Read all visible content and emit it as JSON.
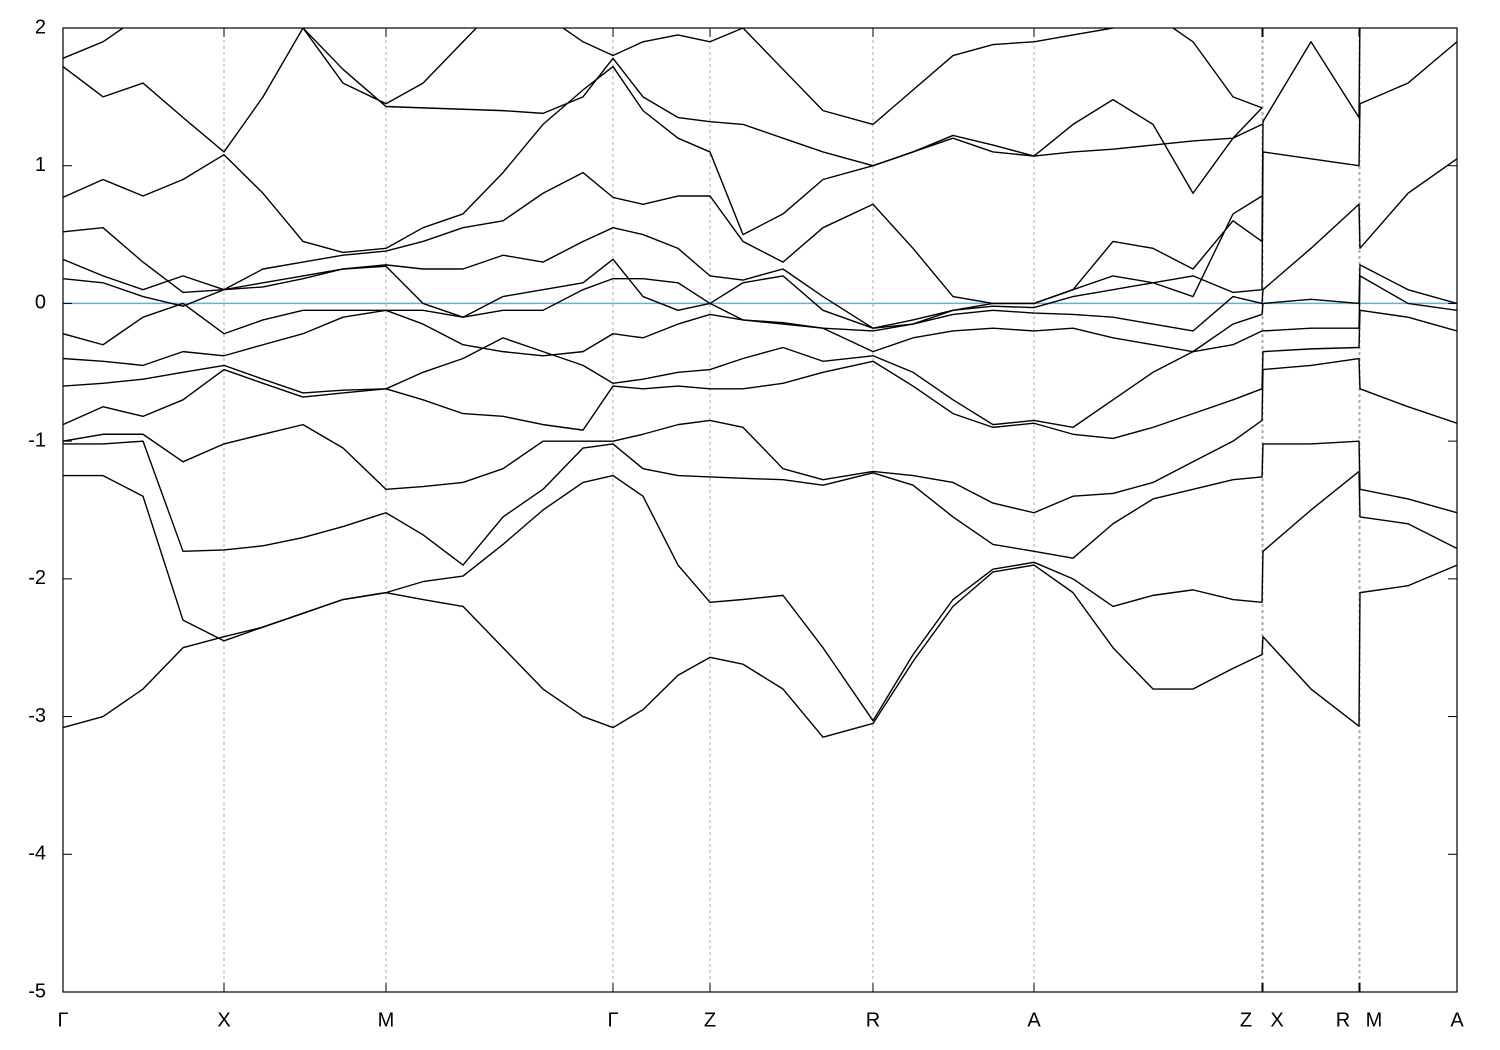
{
  "chart_data": {
    "type": "line",
    "color": "#000000",
    "grid": true,
    "grid_style": "dotted",
    "xlim": [
      0,
      139.4
    ],
    "ylim": [
      -5,
      2
    ],
    "yticks": [
      -5,
      -4,
      -3,
      -2,
      -1,
      0,
      1,
      2
    ],
    "xticks": [
      {
        "value": 0,
        "label": "Γ"
      },
      {
        "value": 16.1,
        "label": "X"
      },
      {
        "value": 32.3,
        "label": "M"
      },
      {
        "value": 55,
        "label": "Γ"
      },
      {
        "value": 64.7,
        "label": "Z"
      },
      {
        "value": 81,
        "label": "R"
      },
      {
        "value": 97.1,
        "label": "A"
      },
      {
        "value": 119.9,
        "label": "Z"
      },
      {
        "value": 120,
        "label": "X"
      },
      {
        "value": 129.6,
        "label": "R"
      },
      {
        "value": 129.7,
        "label": "M"
      },
      {
        "value": 139.4,
        "label": "A"
      }
    ],
    "hlines": [
      {
        "value": 0,
        "color": "#6aaed0"
      }
    ],
    "x": [
      0,
      4,
      8,
      12,
      16.1,
      20,
      24,
      28,
      32.3,
      36,
      40,
      44,
      48,
      52,
      55,
      58,
      61.5,
      64.7,
      68,
      72,
      76,
      81,
      85,
      89,
      93,
      97.1,
      101,
      105,
      109,
      113,
      117,
      119.9,
      120,
      124.8,
      129.6,
      129.7,
      134.5,
      139.4
    ],
    "series": [
      {
        "values": [
          -3.08,
          -3.0,
          -2.8,
          -2.5,
          -2.42,
          -2.35,
          -2.25,
          -2.15,
          -2.1,
          -2.15,
          -2.2,
          -2.5,
          -2.8,
          -3.0,
          -3.08,
          -2.95,
          -2.7,
          -2.57,
          -2.62,
          -2.8,
          -3.15,
          -3.05,
          -2.6,
          -2.2,
          -1.95,
          -1.9,
          -2.1,
          -2.5,
          -2.8,
          -2.8,
          -2.65,
          -2.55,
          -2.42,
          -2.8,
          -3.07,
          -2.1,
          -2.05,
          -1.9
        ]
      },
      {
        "values": [
          -1.25,
          -1.25,
          -1.4,
          -2.3,
          -2.45,
          -2.35,
          -2.25,
          -2.15,
          -2.1,
          -2.02,
          -1.98,
          -1.75,
          -1.5,
          -1.3,
          -1.25,
          -1.4,
          -1.9,
          -2.17,
          -2.15,
          -2.12,
          -2.5,
          -3.03,
          -2.55,
          -2.15,
          -1.93,
          -1.88,
          -2.0,
          -2.2,
          -2.12,
          -2.08,
          -2.15,
          -2.17,
          -1.8,
          -1.5,
          -1.22,
          -1.55,
          -1.6,
          -1.78
        ]
      },
      {
        "values": [
          -1.02,
          -1.02,
          -1.0,
          -1.8,
          -1.79,
          -1.76,
          -1.7,
          -1.62,
          -1.52,
          -1.68,
          -1.9,
          -1.55,
          -1.35,
          -1.05,
          -1.02,
          -1.2,
          -1.25,
          -1.26,
          -1.27,
          -1.28,
          -1.32,
          -1.23,
          -1.32,
          -1.55,
          -1.75,
          -1.8,
          -1.85,
          -1.6,
          -1.42,
          -1.35,
          -1.28,
          -1.26,
          -1.02,
          -1.02,
          -1.0,
          -1.35,
          -1.42,
          -1.52
        ]
      },
      {
        "values": [
          -1.0,
          -0.95,
          -0.95,
          -1.15,
          -1.02,
          -0.95,
          -0.88,
          -1.05,
          -1.35,
          -1.33,
          -1.3,
          -1.2,
          -1.0,
          -1.0,
          -1.0,
          -0.95,
          -0.88,
          -0.85,
          -0.9,
          -1.2,
          -1.28,
          -1.22,
          -1.25,
          -1.3,
          -1.45,
          -1.52,
          -1.4,
          -1.38,
          -1.3,
          -1.15,
          -1.0,
          -0.85,
          -0.48,
          -0.45,
          -0.4,
          -0.62,
          -0.75,
          -0.87
        ]
      },
      {
        "values": [
          -0.88,
          -0.75,
          -0.82,
          -0.7,
          -0.48,
          -0.58,
          -0.68,
          -0.65,
          -0.62,
          -0.7,
          -0.8,
          -0.82,
          -0.88,
          -0.92,
          -0.6,
          -0.62,
          -0.6,
          -0.62,
          -0.62,
          -0.58,
          -0.5,
          -0.42,
          -0.6,
          -0.8,
          -0.9,
          -0.87,
          -0.95,
          -0.98,
          -0.9,
          -0.8,
          -0.7,
          -0.62,
          -0.35,
          -0.33,
          -0.32,
          -0.05,
          -0.1,
          -0.2
        ]
      },
      {
        "values": [
          -0.6,
          -0.58,
          -0.55,
          -0.5,
          -0.45,
          -0.55,
          -0.65,
          -0.63,
          -0.62,
          -0.5,
          -0.4,
          -0.25,
          -0.35,
          -0.45,
          -0.58,
          -0.55,
          -0.5,
          -0.48,
          -0.4,
          -0.32,
          -0.42,
          -0.38,
          -0.5,
          -0.7,
          -0.88,
          -0.85,
          -0.9,
          -0.7,
          -0.5,
          -0.35,
          -0.3,
          -0.2,
          -0.2,
          -0.18,
          -0.18,
          0.2,
          0.0,
          -0.05
        ]
      },
      {
        "values": [
          -0.4,
          -0.42,
          -0.45,
          -0.35,
          -0.38,
          -0.3,
          -0.22,
          -0.1,
          -0.05,
          -0.15,
          -0.3,
          -0.35,
          -0.38,
          -0.35,
          -0.22,
          -0.25,
          -0.15,
          -0.08,
          -0.12,
          -0.14,
          -0.18,
          -0.35,
          -0.25,
          -0.2,
          -0.18,
          -0.2,
          -0.18,
          -0.25,
          -0.3,
          -0.35,
          -0.15,
          -0.08,
          0.0,
          0.03,
          0.0,
          0.28,
          0.1,
          0.0
        ]
      },
      {
        "values": [
          -0.22,
          -0.3,
          -0.1,
          0.0,
          -0.22,
          -0.12,
          -0.05,
          -0.05,
          -0.05,
          -0.05,
          -0.1,
          -0.05,
          -0.05,
          0.1,
          0.18,
          0.18,
          0.15,
          0.0,
          -0.12,
          -0.15,
          -0.18,
          -0.2,
          -0.15,
          -0.08,
          -0.05,
          -0.07,
          -0.08,
          -0.1,
          -0.15,
          -0.2,
          0.05,
          0.0,
          0.1,
          0.4,
          0.72,
          0.4,
          0.8,
          1.05
        ]
      },
      {
        "values": [
          0.18,
          0.15,
          0.05,
          -0.02,
          0.1,
          0.15,
          0.2,
          0.25,
          0.27,
          0.0,
          -0.1,
          0.05,
          0.1,
          0.15,
          0.32,
          0.05,
          -0.05,
          0.0,
          0.15,
          0.2,
          -0.05,
          -0.18,
          -0.12,
          -0.05,
          -0.02,
          -0.03,
          0.05,
          0.1,
          0.15,
          0.2,
          0.08,
          0.1,
          1.1,
          1.05,
          1.0,
          1.45,
          1.6,
          1.9
        ]
      },
      {
        "values": [
          0.32,
          0.2,
          0.1,
          0.2,
          0.1,
          0.12,
          0.18,
          0.25,
          0.28,
          0.25,
          0.25,
          0.35,
          0.3,
          0.45,
          0.55,
          0.5,
          0.4,
          0.2,
          0.17,
          0.25,
          0.05,
          -0.18,
          -0.15,
          -0.05,
          0.0,
          0.0,
          0.1,
          0.45,
          0.4,
          0.25,
          0.6,
          0.45,
          1.32,
          1.9,
          1.35,
          2.1,
          2.1,
          2.1
        ]
      },
      {
        "values": [
          0.52,
          0.55,
          0.3,
          0.08,
          0.1,
          0.25,
          0.3,
          0.35,
          0.38,
          0.45,
          0.55,
          0.6,
          0.8,
          0.95,
          0.77,
          0.72,
          0.78,
          0.78,
          0.45,
          0.3,
          0.55,
          0.72,
          0.4,
          0.05,
          0.0,
          0.0,
          0.1,
          0.2,
          0.15,
          0.05,
          0.65,
          0.78,
          null,
          null,
          null,
          null,
          null,
          null
        ]
      },
      {
        "values": [
          0.77,
          0.9,
          0.78,
          0.9,
          1.08,
          0.8,
          0.45,
          0.37,
          0.4,
          0.55,
          0.65,
          0.95,
          1.3,
          1.55,
          1.72,
          1.4,
          1.2,
          1.1,
          0.5,
          0.65,
          0.9,
          1.0,
          1.1,
          1.2,
          1.1,
          1.07,
          1.1,
          1.12,
          1.15,
          1.18,
          1.2,
          1.3,
          null,
          null,
          null,
          null,
          null,
          null
        ]
      },
      {
        "values": [
          1.72,
          1.5,
          1.6,
          1.35,
          1.1,
          1.5,
          2.0,
          1.7,
          1.43,
          1.42,
          1.41,
          1.4,
          1.38,
          1.5,
          1.78,
          1.5,
          1.35,
          1.32,
          1.3,
          1.2,
          1.1,
          1.0,
          1.1,
          1.22,
          1.15,
          1.07,
          1.3,
          1.48,
          1.3,
          0.8,
          1.2,
          1.42,
          null,
          null,
          null,
          null,
          null,
          null
        ]
      },
      {
        "values": [
          1.78,
          1.9,
          2.1,
          2.3,
          2.4,
          2.2,
          2.0,
          1.6,
          1.45,
          1.6,
          1.9,
          2.2,
          2.1,
          1.9,
          1.8,
          1.9,
          1.95,
          1.9,
          2.0,
          1.7,
          1.4,
          1.3,
          1.55,
          1.8,
          1.88,
          1.9,
          1.95,
          2.0,
          2.1,
          1.9,
          1.5,
          1.42,
          null,
          null,
          null,
          null,
          null,
          null
        ]
      }
    ]
  }
}
